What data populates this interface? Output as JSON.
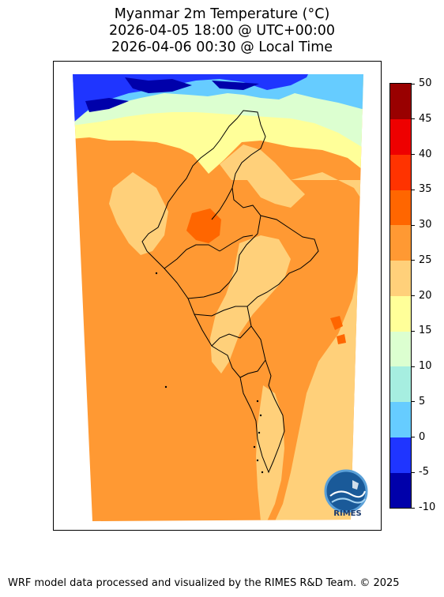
{
  "title": {
    "line1": "Myanmar 2m Temperature (°C)",
    "line2": "2026-04-05 18:00 @ UTC+00:00",
    "line3": "2026-04-06 00:30 @ Local Time"
  },
  "colorbar": {
    "levels": [
      -10,
      -5,
      0,
      5,
      10,
      15,
      20,
      25,
      30,
      35,
      40,
      45,
      50
    ],
    "labels": [
      "-10",
      "-5",
      "0",
      "5",
      "10",
      "15",
      "20",
      "25",
      "30",
      "35",
      "40",
      "45",
      "50"
    ],
    "colors": [
      "#0000aa",
      "#1f35ff",
      "#66ccff",
      "#a6eee0",
      "#dcffd0",
      "#ffff99",
      "#ffd07a",
      "#ff9933",
      "#ff6600",
      "#ff3300",
      "#ee0000",
      "#990000"
    ]
  },
  "map": {
    "region": "Myanmar",
    "variable": "2m Temperature",
    "colors": {
      "dominant": "#ff9933",
      "warm_spot": "#ff6600",
      "mild": "#ffd07a",
      "cool": "#ffff99",
      "cold": "#66ccff",
      "very_cold": "#1f35ff",
      "coldest": "#0000aa",
      "border": "#000000"
    }
  },
  "logo": {
    "text": "RIMES",
    "icon": "rimes-globe-logo-icon"
  },
  "footer": {
    "text": "WRF model data processed and visualized by the RIMES R&D Team. © 2025"
  }
}
